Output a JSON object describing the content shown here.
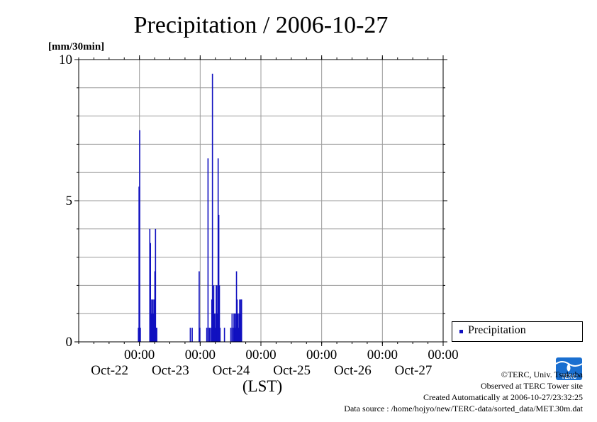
{
  "chart_data": {
    "type": "bar",
    "title": "Precipitation / 2006-10-27",
    "ylabel": "[mm/30min]",
    "xlabel": "(LST)",
    "ylim": [
      0,
      10
    ],
    "yticks": [
      0,
      5,
      10
    ],
    "xlim": [
      "2006-10-21T00:00",
      "2006-10-27T00:00"
    ],
    "xticks": [
      {
        "time": "00:00",
        "date": "Oct-22",
        "x": "2006-10-22T00:00"
      },
      {
        "time": "00:00",
        "date": "Oct-23",
        "x": "2006-10-23T00:00"
      },
      {
        "time": "00:00",
        "date": "Oct-24",
        "x": "2006-10-24T00:00"
      },
      {
        "time": "00:00",
        "date": "Oct-25",
        "x": "2006-10-25T00:00"
      },
      {
        "time": "00:00",
        "date": "Oct-26",
        "x": "2006-10-26T00:00"
      },
      {
        "time": "00:00",
        "date": "Oct-27",
        "x": "2006-10-27T00:00"
      }
    ],
    "grid": true,
    "legend_position": "right",
    "series": [
      {
        "name": "Precipitation",
        "color": "#1010c0",
        "points": [
          {
            "x": "2006-10-21T23:30",
            "y": 0.5
          },
          {
            "x": "2006-10-21T23:45",
            "y": 5.5
          },
          {
            "x": "2006-10-22T00:00",
            "y": 7.5
          },
          {
            "x": "2006-10-22T00:15",
            "y": 0.5
          },
          {
            "x": "2006-10-22T04:00",
            "y": 4.0
          },
          {
            "x": "2006-10-22T04:15",
            "y": 3.5
          },
          {
            "x": "2006-10-22T04:30",
            "y": 1.0
          },
          {
            "x": "2006-10-22T04:45",
            "y": 1.5
          },
          {
            "x": "2006-10-22T05:00",
            "y": 1.0
          },
          {
            "x": "2006-10-22T05:15",
            "y": 1.5
          },
          {
            "x": "2006-10-22T05:30",
            "y": 1.0
          },
          {
            "x": "2006-10-22T05:45",
            "y": 1.5
          },
          {
            "x": "2006-10-22T06:00",
            "y": 2.5
          },
          {
            "x": "2006-10-22T06:15",
            "y": 4.0
          },
          {
            "x": "2006-10-22T06:30",
            "y": 0.5
          },
          {
            "x": "2006-10-22T06:45",
            "y": 0.5
          },
          {
            "x": "2006-10-22T20:00",
            "y": 0.5
          },
          {
            "x": "2006-10-22T20:45",
            "y": 0.5
          },
          {
            "x": "2006-10-22T23:30",
            "y": 2.5
          },
          {
            "x": "2006-10-22T23:45",
            "y": 0.5
          },
          {
            "x": "2006-10-23T02:30",
            "y": 0.5
          },
          {
            "x": "2006-10-23T03:00",
            "y": 6.5
          },
          {
            "x": "2006-10-23T03:30",
            "y": 0.5
          },
          {
            "x": "2006-10-23T04:00",
            "y": 0.5
          },
          {
            "x": "2006-10-23T04:30",
            "y": 1.5
          },
          {
            "x": "2006-10-23T04:45",
            "y": 9.5
          },
          {
            "x": "2006-10-23T05:00",
            "y": 1.5
          },
          {
            "x": "2006-10-23T05:15",
            "y": 2.0
          },
          {
            "x": "2006-10-23T05:30",
            "y": 1.0
          },
          {
            "x": "2006-10-23T05:45",
            "y": 0.5
          },
          {
            "x": "2006-10-23T06:00",
            "y": 1.0
          },
          {
            "x": "2006-10-23T06:15",
            "y": 2.0
          },
          {
            "x": "2006-10-23T06:30",
            "y": 2.0
          },
          {
            "x": "2006-10-23T06:45",
            "y": 1.0
          },
          {
            "x": "2006-10-23T07:00",
            "y": 6.5
          },
          {
            "x": "2006-10-23T07:15",
            "y": 4.5
          },
          {
            "x": "2006-10-23T07:30",
            "y": 2.0
          },
          {
            "x": "2006-10-23T07:45",
            "y": 0.5
          },
          {
            "x": "2006-10-23T09:30",
            "y": 0.5
          },
          {
            "x": "2006-10-23T12:00",
            "y": 0.5
          },
          {
            "x": "2006-10-23T12:30",
            "y": 1.0
          },
          {
            "x": "2006-10-23T13:00",
            "y": 0.5
          },
          {
            "x": "2006-10-23T13:15",
            "y": 1.0
          },
          {
            "x": "2006-10-23T13:30",
            "y": 1.0
          },
          {
            "x": "2006-10-23T13:45",
            "y": 0.5
          },
          {
            "x": "2006-10-23T14:00",
            "y": 1.0
          },
          {
            "x": "2006-10-23T14:15",
            "y": 2.5
          },
          {
            "x": "2006-10-23T14:30",
            "y": 1.5
          },
          {
            "x": "2006-10-23T14:45",
            "y": 1.0
          },
          {
            "x": "2006-10-23T15:00",
            "y": 0.5
          },
          {
            "x": "2006-10-23T15:15",
            "y": 1.0
          },
          {
            "x": "2006-10-23T15:30",
            "y": 1.5
          },
          {
            "x": "2006-10-23T15:45",
            "y": 1.0
          },
          {
            "x": "2006-10-23T16:00",
            "y": 1.5
          },
          {
            "x": "2006-10-23T16:15",
            "y": 1.5
          }
        ]
      }
    ]
  },
  "legend": {
    "label": "Precipitation"
  },
  "credits": {
    "copyright": "©TERC, Univ. Tsukuba",
    "observed": "Observed at TERC Tower site",
    "created": "Created Automatically at 2006-10-27/23:32:25",
    "source": "Data source : /home/hojyo/new/TERC-data/sorted_data/MET.30m.dat"
  },
  "logo": {
    "text": "TERC",
    "color": "#1a6fd0"
  }
}
